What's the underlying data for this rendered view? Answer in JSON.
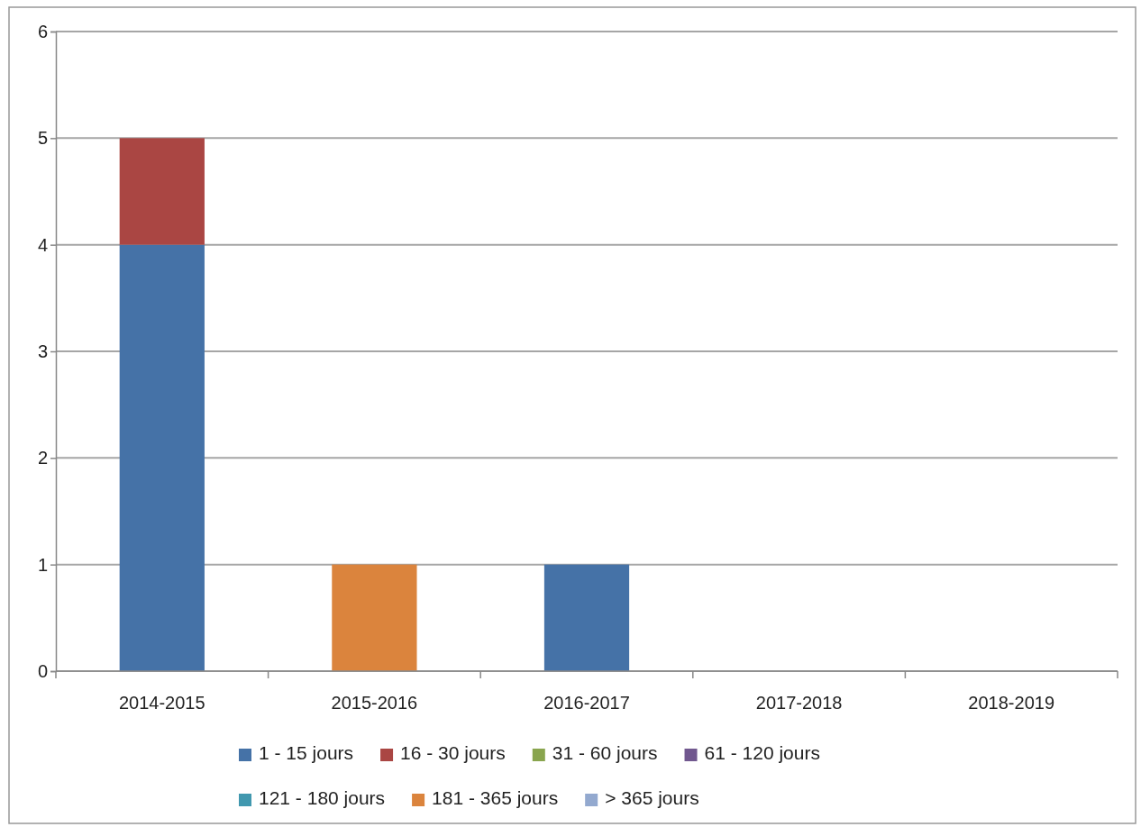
{
  "chart_data": {
    "type": "bar",
    "stacked": true,
    "categories": [
      "2014-2015",
      "2015-2016",
      "2016-2017",
      "2017-2018",
      "2018-2019"
    ],
    "series": [
      {
        "name": "1 - 15 jours",
        "color": "#4572a7",
        "values": [
          4,
          0,
          1,
          0,
          0
        ]
      },
      {
        "name": "16 - 30 jours",
        "color": "#aa4643",
        "values": [
          1,
          0,
          0,
          0,
          0
        ]
      },
      {
        "name": "31 - 60 jours",
        "color": "#89a54e",
        "values": [
          0,
          0,
          0,
          0,
          0
        ]
      },
      {
        "name": "61 - 120 jours",
        "color": "#71588f",
        "values": [
          0,
          0,
          0,
          0,
          0
        ]
      },
      {
        "name": "121 - 180 jours",
        "color": "#4198af",
        "values": [
          0,
          0,
          0,
          0,
          0
        ]
      },
      {
        "name": "181 - 365 jours",
        "color": "#db843d",
        "values": [
          0,
          1,
          0,
          0,
          0
        ]
      },
      {
        "name": "> 365 jours",
        "color": "#93a9cf",
        "values": [
          0,
          0,
          0,
          0,
          0
        ]
      }
    ],
    "ylim": [
      0,
      6
    ],
    "yticks": [
      0,
      1,
      2,
      3,
      4,
      5,
      6
    ],
    "grid": "y",
    "legend": "bottom"
  }
}
